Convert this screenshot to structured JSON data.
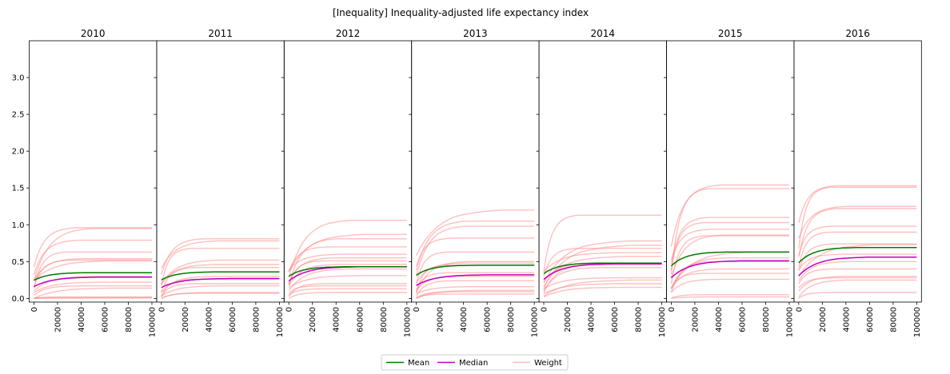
{
  "chart_data": {
    "type": "line",
    "title": "[Inequality] Inequality-adjusted life expectancy index",
    "x_ticks": [
      0,
      20000,
      40000,
      60000,
      80000,
      100000
    ],
    "x_range": [
      -4000,
      104000
    ],
    "y_ticks": [
      0.0,
      0.5,
      1.0,
      1.5,
      2.0,
      2.5,
      3.0
    ],
    "y_range": [
      -0.05,
      3.5
    ],
    "shared_y_axis": true,
    "legend_position": "bottom-center",
    "colors": {
      "mean": "#007a00",
      "median": "#c000c0",
      "weight": "#ff8a8a"
    },
    "legend": [
      {
        "key": "mean",
        "label": "Mean"
      },
      {
        "key": "median",
        "label": "Median"
      },
      {
        "key": "weight",
        "label": "Weight"
      }
    ],
    "panels": [
      {
        "year": "2010",
        "mean_final": 0.35,
        "median_final": 0.29,
        "weights": [
          0.96,
          0.95,
          0.79,
          0.63,
          0.54,
          0.52,
          0.51,
          0.3,
          0.22,
          0.17,
          0.14,
          0.02,
          0.01,
          0.005
        ]
      },
      {
        "year": "2011",
        "mean_final": 0.36,
        "median_final": 0.27,
        "weights": [
          0.81,
          0.78,
          0.68,
          0.52,
          0.46,
          0.42,
          0.3,
          0.26,
          0.2,
          0.17,
          0.08,
          0.07
        ]
      },
      {
        "year": "2012",
        "mean_final": 0.43,
        "median_final": 0.43,
        "weights": [
          1.06,
          0.87,
          0.81,
          0.7,
          0.6,
          0.55,
          0.51,
          0.46,
          0.4,
          0.31,
          0.2,
          0.17,
          0.13,
          0.08
        ]
      },
      {
        "year": "2013",
        "mean_final": 0.45,
        "median_final": 0.32,
        "weights": [
          1.2,
          1.05,
          0.98,
          0.82,
          0.63,
          0.5,
          0.48,
          0.45,
          0.35,
          0.3,
          0.24,
          0.16,
          0.11,
          0.09,
          0.06
        ]
      },
      {
        "year": "2014",
        "mean_final": 0.48,
        "median_final": 0.47,
        "weights": [
          1.13,
          0.78,
          0.72,
          0.68,
          0.62,
          0.57,
          0.48,
          0.46,
          0.42,
          0.28,
          0.25,
          0.2,
          0.15
        ]
      },
      {
        "year": "2015",
        "mean_final": 0.63,
        "median_final": 0.51,
        "weights": [
          1.54,
          1.49,
          1.1,
          1.03,
          0.94,
          0.86,
          0.85,
          0.63,
          0.55,
          0.5,
          0.4,
          0.34,
          0.26,
          0.05,
          0.02
        ]
      },
      {
        "year": "2016",
        "mean_final": 0.69,
        "median_final": 0.56,
        "weights": [
          1.53,
          1.51,
          1.25,
          1.22,
          0.98,
          0.9,
          0.74,
          0.73,
          0.6,
          0.5,
          0.4,
          0.3,
          0.28,
          0.25,
          0.08
        ]
      }
    ]
  }
}
